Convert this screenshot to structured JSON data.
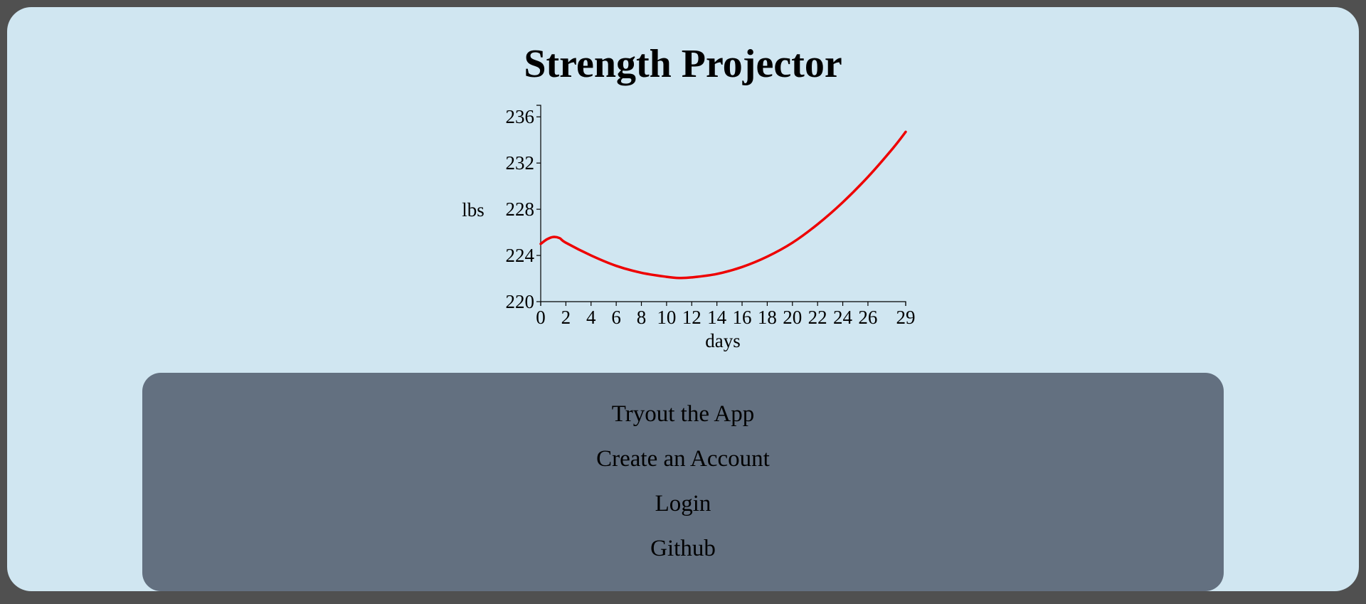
{
  "page": {
    "title": "Strength Projector"
  },
  "menu": {
    "items": [
      {
        "label": "Tryout the App"
      },
      {
        "label": "Create an Account"
      },
      {
        "label": "Login"
      },
      {
        "label": "Github"
      }
    ]
  },
  "colors": {
    "page_background": "#d0e6f1",
    "menu_background": "#637080",
    "line": "#ee0000",
    "frame": "#505050"
  },
  "chart_data": {
    "type": "line",
    "title": "",
    "xlabel": "days",
    "ylabel": "lbs",
    "xlim": [
      0,
      29
    ],
    "ylim": [
      220,
      237
    ],
    "x_ticks": [
      0,
      2,
      4,
      6,
      8,
      10,
      12,
      14,
      16,
      18,
      20,
      22,
      24,
      26,
      29
    ],
    "y_ticks": [
      220,
      224,
      228,
      232,
      236
    ],
    "grid": false,
    "legend": "none",
    "series": [
      {
        "x": [
          0,
          0.5,
          1,
          1.5,
          2,
          4,
          6,
          8,
          10,
          11,
          12,
          14,
          16,
          18,
          20,
          22,
          24,
          26,
          28,
          29
        ],
        "y": [
          225.0,
          225.4,
          225.6,
          225.5,
          225.1,
          224.0,
          223.1,
          222.5,
          222.15,
          222.05,
          222.1,
          222.4,
          223.0,
          223.9,
          225.1,
          226.7,
          228.6,
          230.8,
          233.3,
          234.7
        ]
      }
    ]
  }
}
